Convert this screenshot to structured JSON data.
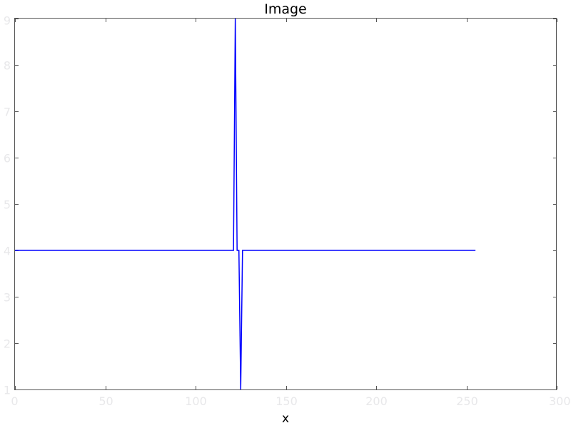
{
  "chart_data": {
    "type": "line",
    "title": "Image",
    "xlabel": "x",
    "ylabel": "",
    "xlim": [
      0,
      300
    ],
    "ylim": [
      1,
      9
    ],
    "xticks": [
      0,
      50,
      100,
      150,
      200,
      250,
      300
    ],
    "yticks": [
      1,
      2,
      3,
      4,
      5,
      6,
      7,
      8,
      9
    ],
    "grid": false,
    "series": [
      {
        "color": "#0000ff",
        "x": [
          0,
          121,
          122,
          123,
          124,
          125,
          126,
          127,
          255
        ],
        "y": [
          4,
          4,
          9,
          4,
          4,
          1,
          4,
          4,
          4
        ]
      }
    ]
  },
  "colors": {
    "line": "#0000ff",
    "frame": "#000000",
    "tick_label": "#e8e8ea",
    "background": "#ffffff"
  }
}
